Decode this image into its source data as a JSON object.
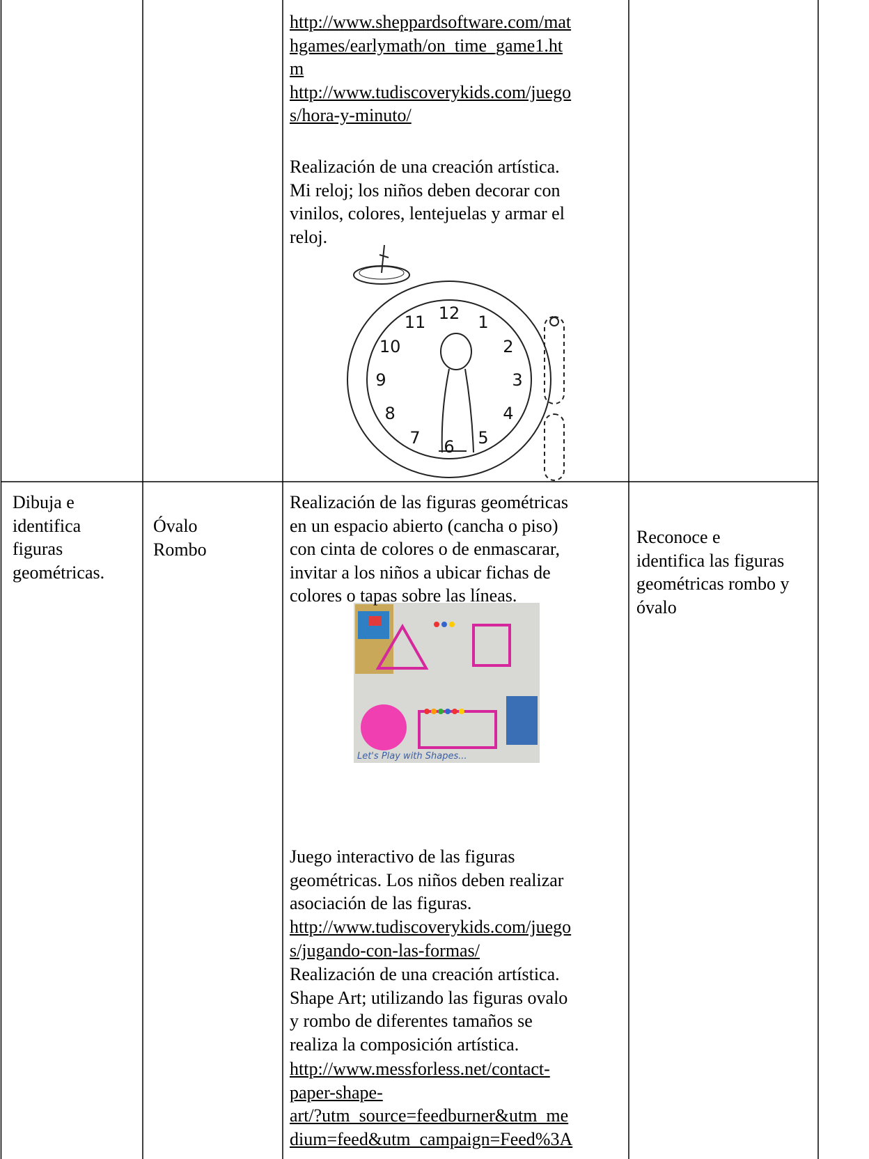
{
  "table": {
    "rows": [
      {
        "activity": {
          "links": [
            "http://www.sheppardsoftware.com/mat",
            "hgames/earlymath/on_time_game1.ht",
            "m",
            "http://www.tudiscoverykids.com/juego",
            "s/hora-y-minuto/"
          ],
          "text": [
            "Realización de una creación artística.",
            "Mi reloj; los niños deben decorar con",
            "vinilos, colores, lentejuelas y armar el",
            "reloj."
          ],
          "image": {
            "clock_numbers": [
              "12",
              "1",
              "2",
              "3",
              "4",
              "5",
              "6",
              "7",
              "8",
              "9",
              "10",
              "11"
            ]
          }
        }
      },
      {
        "skill": [
          "Dibuja e",
          "identifica",
          "figuras",
          "geométricas."
        ],
        "content": [
          "Óvalo",
          "Rombo"
        ],
        "activity": {
          "text": [
            "Realización de las figuras geométricas",
            "en un espacio abierto (cancha o piso)",
            "con cinta de colores o de enmascarar,",
            "invitar a los niños a ubicar fichas de",
            "colores o tapas sobre las líneas."
          ],
          "image": {
            "caption": "Let's Play with Shapes..."
          },
          "text2": [
            "Juego interactivo de las figuras",
            "geométricas. Los niños deben realizar",
            "asociación de las figuras."
          ],
          "links2": [
            "http://www.tudiscoverykids.com/juego",
            "s/jugando-con-las-formas/"
          ],
          "text3": [
            "Realización de una creación artística.",
            "Shape Art; utilizando las figuras ovalo",
            "y rombo de diferentes tamaños se",
            "realiza la composición artística."
          ],
          "links3": [
            "http://www.messforless.net/contact-",
            "paper-shape-",
            "art/?utm_source=feedburner&utm_me",
            "dium=feed&utm_campaign=Feed%3A"
          ]
        },
        "outcome": [
          "Reconoce e",
          "identifica las figuras",
          "geométricas rombo y",
          "óvalo"
        ]
      }
    ]
  }
}
